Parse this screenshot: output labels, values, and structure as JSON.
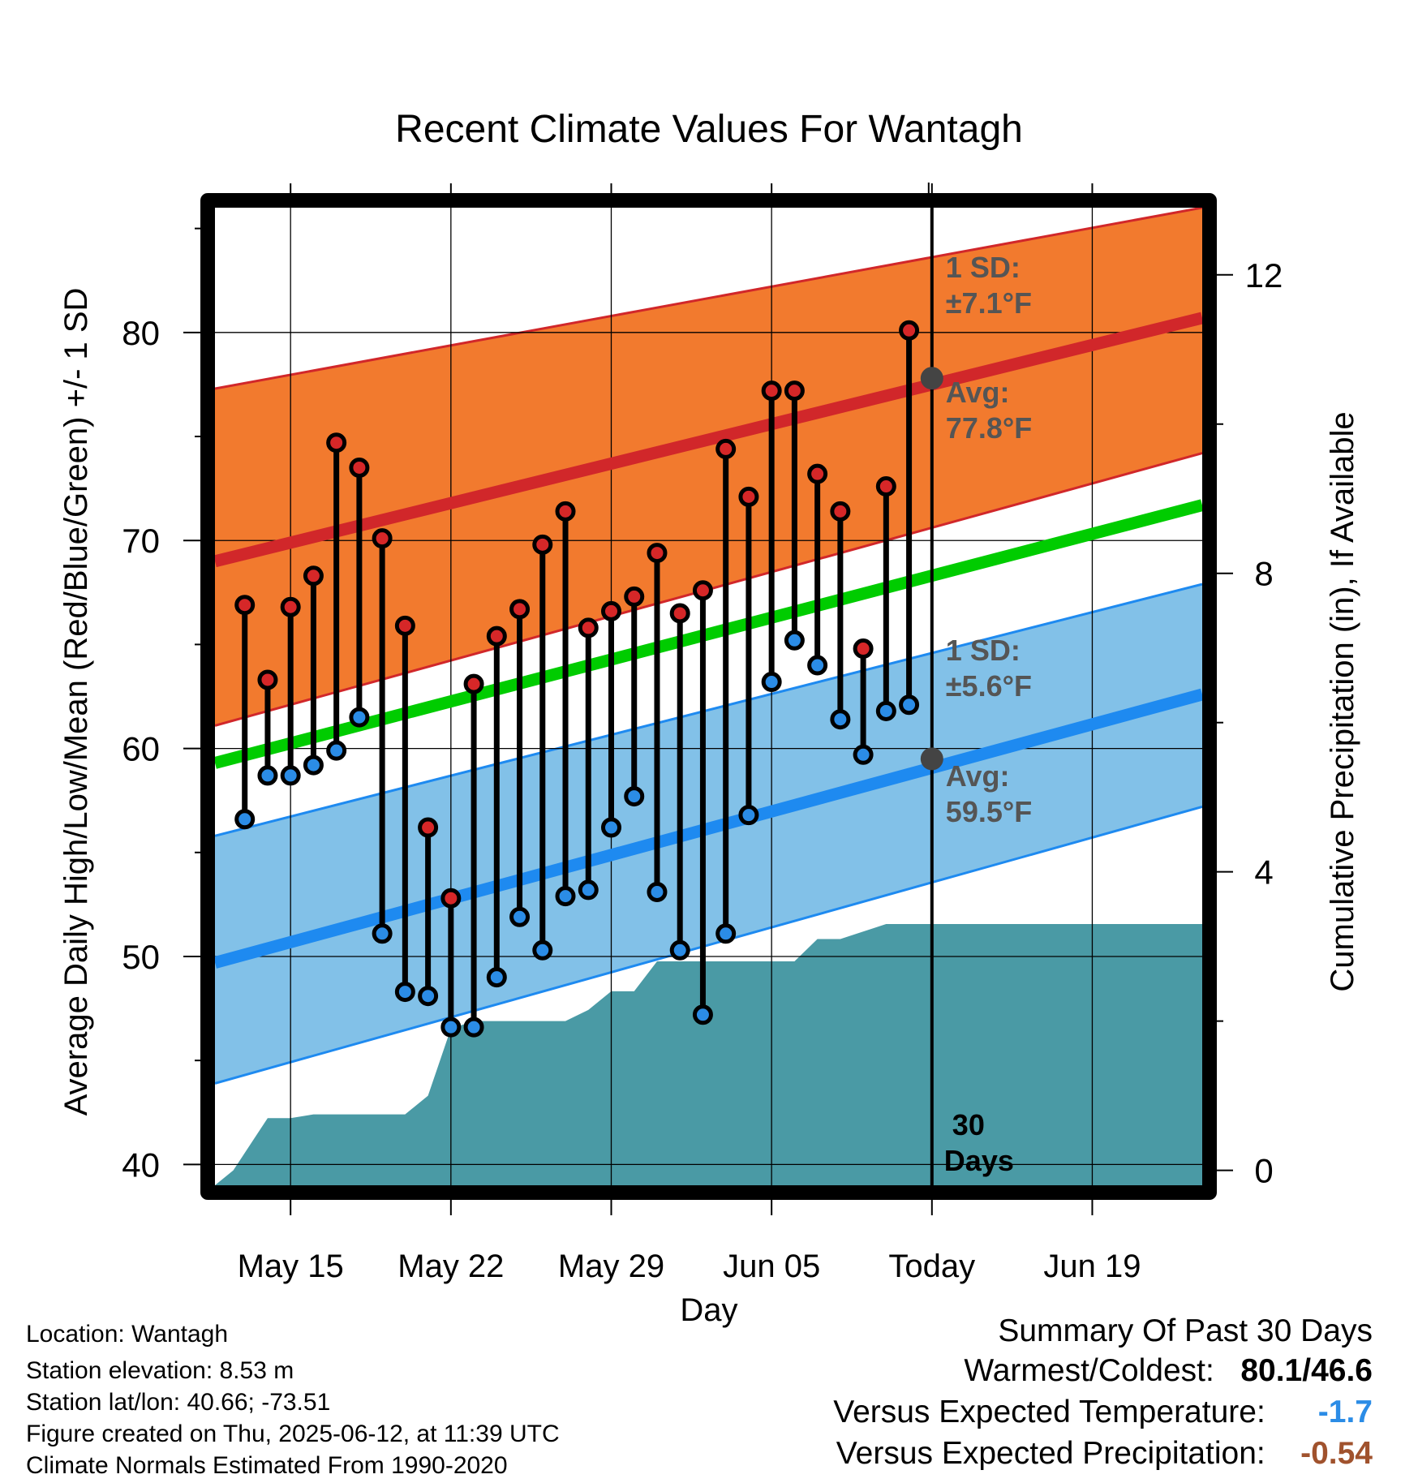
{
  "chart_data": {
    "type": "line",
    "title": "Recent Climate Values For Wantagh",
    "xlabel": "Day",
    "ylabel": "Average Daily High/Low/Mean (Red/Blue/Green) +/- 1 SD",
    "y2label": "Cumulative Precipitation (in), If Available",
    "xlim": [
      -2.3,
      40.8
    ],
    "ylim": [
      39,
      86
    ],
    "y2lim": [
      -0.2,
      12.9
    ],
    "yticks": [
      40,
      50,
      60,
      70,
      80
    ],
    "y2ticks": [
      0,
      4,
      8,
      12
    ],
    "xticks": [
      {
        "x": 1,
        "label": "May 15"
      },
      {
        "x": 8,
        "label": "May 22"
      },
      {
        "x": 15,
        "label": "May 29"
      },
      {
        "x": 22,
        "label": "Jun 05"
      },
      {
        "x": 29,
        "label": "Today"
      },
      {
        "x": 36,
        "label": "Jun 19"
      }
    ],
    "today_x": 29,
    "grid": true,
    "normals": {
      "x": [
        -2.3,
        40.8
      ],
      "high_mean": [
        69.0,
        80.7
      ],
      "high_upper": [
        77.3,
        86.0
      ],
      "high_lower": [
        61.1,
        74.2
      ],
      "mean": [
        59.3,
        71.7
      ],
      "low_mean": [
        49.7,
        62.6
      ],
      "low_upper": [
        55.8,
        67.9
      ],
      "low_lower": [
        43.9,
        57.2
      ]
    },
    "series": [
      {
        "name": "High",
        "color": "#d62728",
        "x": [
          -1,
          0,
          1,
          2,
          3,
          4,
          5,
          6,
          7,
          8,
          9,
          10,
          11,
          12,
          13,
          14,
          15,
          16,
          17,
          18,
          19,
          20,
          21,
          22,
          23,
          24,
          25,
          26,
          27,
          28
        ],
        "values": [
          66.9,
          63.3,
          66.8,
          68.3,
          74.7,
          73.5,
          70.1,
          65.9,
          56.2,
          52.8,
          63.1,
          65.4,
          66.7,
          69.8,
          71.4,
          65.8,
          66.6,
          67.3,
          69.4,
          66.5,
          67.6,
          74.4,
          72.1,
          77.2,
          77.2,
          73.2,
          71.4,
          64.8,
          72.6,
          80.1
        ]
      },
      {
        "name": "Low",
        "color": "#2b8ce6",
        "x": [
          -1,
          0,
          1,
          2,
          3,
          4,
          5,
          6,
          7,
          8,
          9,
          10,
          11,
          12,
          13,
          14,
          15,
          16,
          17,
          18,
          19,
          20,
          21,
          22,
          23,
          24,
          25,
          26,
          27,
          28
        ],
        "values": [
          56.6,
          58.7,
          58.7,
          59.2,
          59.9,
          61.5,
          51.1,
          48.3,
          48.1,
          46.6,
          46.6,
          49.0,
          51.9,
          50.3,
          52.9,
          53.2,
          56.2,
          57.7,
          53.1,
          50.3,
          47.2,
          51.1,
          56.8,
          63.2,
          65.2,
          64.0,
          61.4,
          59.7,
          61.8,
          62.1
        ]
      },
      {
        "name": "Precipitation",
        "color": "#4a9aa5",
        "x": [
          -2.3,
          -1.5,
          0,
          1,
          2,
          3,
          4,
          5,
          6,
          7,
          8,
          9,
          10,
          11,
          12,
          13,
          14,
          15,
          16,
          17,
          18,
          19,
          20,
          21,
          22,
          23,
          24,
          25,
          26,
          27,
          28,
          29,
          40.8
        ],
        "values": [
          -0.2,
          0.0,
          0.7,
          0.7,
          0.75,
          0.75,
          0.75,
          0.75,
          0.75,
          1.0,
          1.9,
          2.0,
          2.0,
          2.0,
          2.0,
          2.0,
          2.15,
          2.4,
          2.4,
          2.8,
          2.8,
          2.8,
          2.8,
          2.8,
          2.8,
          2.8,
          3.1,
          3.1,
          3.2,
          3.3,
          3.3,
          3.3,
          3.3
        ]
      }
    ],
    "annotations": {
      "high_sd_label": "1 SD:",
      "high_sd_value": "±7.1°F",
      "high_avg_label": "Avg:",
      "high_avg_value": "77.8°F",
      "high_avg": 77.8,
      "low_sd_label": "1 SD:",
      "low_sd_value": "±5.6°F",
      "low_avg_label": "Avg:",
      "low_avg_value": "59.5°F",
      "low_avg": 59.5,
      "days_number": "30",
      "days_label": "Days"
    },
    "colors": {
      "high_band": "#f27a2e",
      "high_line": "#d1272a",
      "low_band": "#82c1e8",
      "low_line": "#1e8af0",
      "mean_line": "#00cc00",
      "precip": "#4a9aa5",
      "annotation": "#555555"
    }
  },
  "info": {
    "location": "Location: Wantagh",
    "elevation": "Station elevation: 8.53 m",
    "latlon": "Station lat/lon: 40.66; -73.51",
    "created": "Figure created on Thu, 2025-06-12, at 11:39 UTC",
    "normals": "Climate Normals Estimated From 1990-2020"
  },
  "summary": {
    "title": "Summary Of Past 30 Days",
    "warm_label": "Warmest/Coldest:",
    "warm_value": "80.1/46.6",
    "temp_label": "Versus Expected Temperature:",
    "temp_value": "-1.7",
    "temp_color": "#2b8ce6",
    "precip_label": "Versus Expected Precipitation:",
    "precip_value": "-0.54",
    "precip_color": "#a0522d"
  }
}
